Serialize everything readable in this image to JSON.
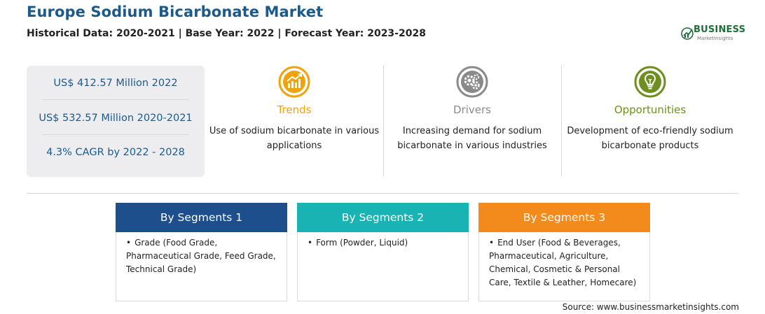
{
  "header": {
    "title": "Europe Sodium Bicarbonate Market",
    "subtitle": "Historical Data: 2020-2021 | Base Year: 2022 | Forecast Year: 2023-2028"
  },
  "logo": {
    "name": "BUSINESS",
    "tagline": "MarketInsights",
    "color": "#1e6f3a"
  },
  "stats": [
    "US$ 412.57 Million 2022",
    "US$ 532.57 Million 2020-2021",
    "4.3% CAGR by 2022 - 2028"
  ],
  "features": [
    {
      "icon": "trend-chart-icon",
      "title": "Trends",
      "text": "Use of sodium bicarbonate in various applications",
      "color": "#f0a30a"
    },
    {
      "icon": "gears-icon",
      "title": "Drivers",
      "text": "Increasing demand for sodium bicarbonate in various industries",
      "color": "#8a8a8a"
    },
    {
      "icon": "lightbulb-icon",
      "title": "Opportunities",
      "text": "Development of eco-friendly sodium bicarbonate products",
      "color": "#6e8f1f"
    }
  ],
  "segments": [
    {
      "title": "By Segments 1",
      "color": "#1c4f8c",
      "item": "Grade (Food Grade, Pharmaceutical Grade, Feed Grade, Technical Grade)"
    },
    {
      "title": "By Segments 2",
      "color": "#1ab3b3",
      "item": "Form (Powder, Liquid)"
    },
    {
      "title": "By Segments 3",
      "color": "#f28a1c",
      "item": "End User (Food & Beverages, Pharmaceutical, Agriculture, Chemical, Cosmetic & Personal Care, Textile & Leather, Homecare)"
    }
  ],
  "source": "Source: www.businessmarketinsights.com"
}
